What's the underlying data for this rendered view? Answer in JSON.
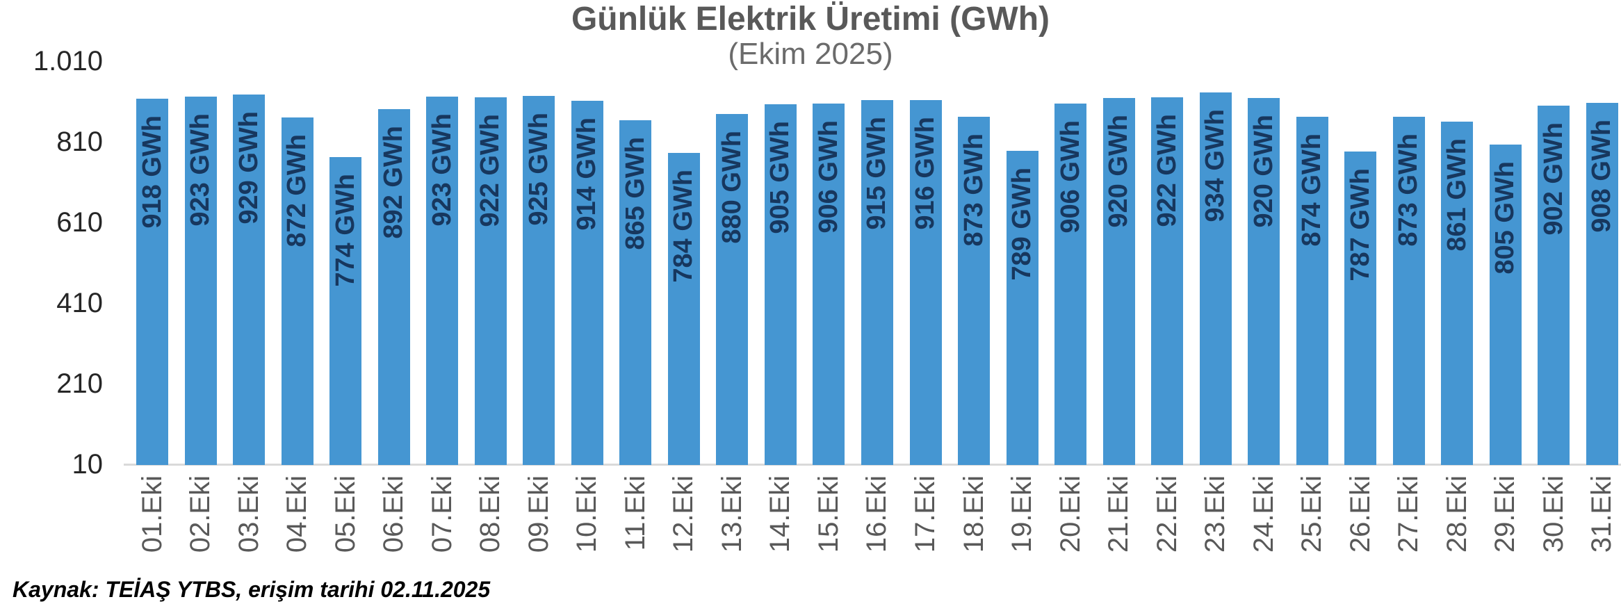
{
  "header": {
    "title": "Günlük Elektrik Üretimi (GWh)",
    "subtitle": "(Ekim 2025)"
  },
  "chart_data": {
    "type": "bar",
    "title": "Günlük Elektrik Üretimi (GWh)",
    "subtitle": "(Ekim 2025)",
    "categories": [
      "01.Eki",
      "02.Eki",
      "03.Eki",
      "04.Eki",
      "05.Eki",
      "06.Eki",
      "07.Eki",
      "08.Eki",
      "09.Eki",
      "10.Eki",
      "11.Eki",
      "12.Eki",
      "13.Eki",
      "14.Eki",
      "15.Eki",
      "16.Eki",
      "17.Eki",
      "18.Eki",
      "19.Eki",
      "20.Eki",
      "21.Eki",
      "22.Eki",
      "23.Eki",
      "24.Eki",
      "25.Eki",
      "26.Eki",
      "27.Eki",
      "28.Eki",
      "29.Eki",
      "30.Eki",
      "31.Eki"
    ],
    "values": [
      918,
      923,
      929,
      872,
      774,
      892,
      923,
      922,
      925,
      914,
      865,
      784,
      880,
      905,
      906,
      915,
      916,
      873,
      789,
      906,
      920,
      922,
      934,
      920,
      874,
      787,
      873,
      861,
      805,
      902,
      908
    ],
    "unit": "GWh",
    "xlabel": "",
    "ylabel": "",
    "ylim": [
      10,
      1010
    ],
    "yticks": [
      10,
      210,
      410,
      610,
      810,
      1010
    ],
    "ytick_labels": [
      "10",
      "210",
      "410",
      "610",
      "810",
      "1.010"
    ],
    "grid": false,
    "legend": "none",
    "bar_labels_inside": true,
    "colors": {
      "bar": "#4596d2",
      "bar_label": "#17375e",
      "title": "#595959",
      "subtitle": "#6b6b6b",
      "axis_line": "#d9d9d9",
      "y_tick_label": "#262626",
      "x_tick_label": "#595959"
    }
  },
  "footer": {
    "source_note": "Kaynak: TEİAŞ YTBS, erişim tarihi 02.11.2025"
  }
}
